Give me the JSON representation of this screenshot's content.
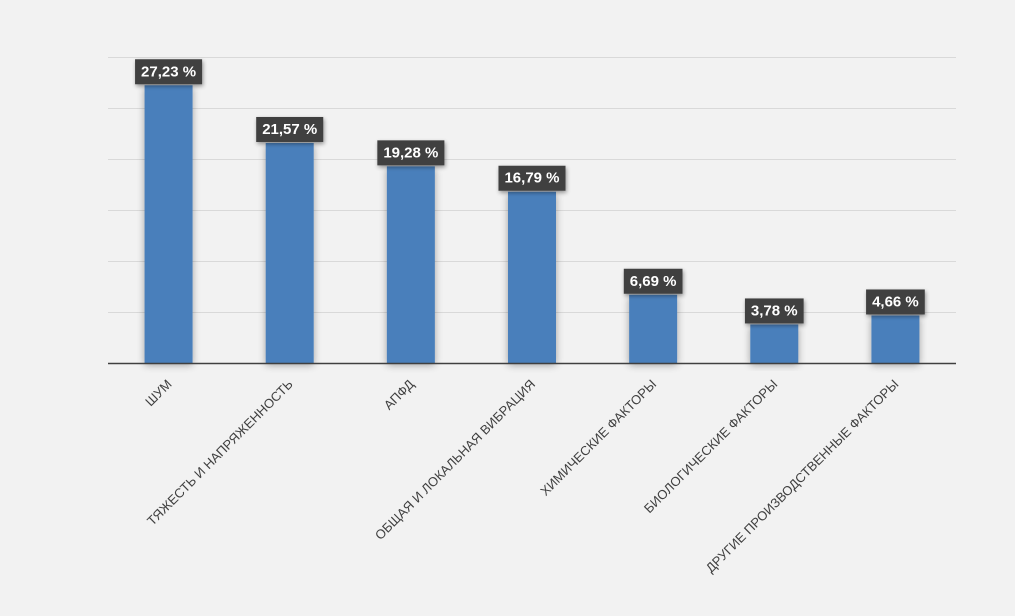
{
  "chart_data": {
    "type": "bar",
    "categories": [
      "ШУМ",
      "ТЯЖЕСТЬ И НАПРЯЖЕННОСТЬ",
      "АПФД",
      "ОБЩАЯ И ЛОКАЛЬНАЯ ВИБРАЦИЯ",
      "ХИМИЧЕСКИЕ ФАКТОРЫ",
      "БИОЛОГИЧЕСКИЕ ФАКТОРЫ",
      "ДРУГИЕ ПРОИЗВОДСТВЕННЫЕ ФАКТОРЫ"
    ],
    "values": [
      27.23,
      21.57,
      19.28,
      16.79,
      6.69,
      3.78,
      4.66
    ],
    "data_labels": [
      "27,23 %",
      "21,57 %",
      "19,28 %",
      "16,79 %",
      "6,69 %",
      "3,78 %",
      "4,66 %"
    ],
    "title": "",
    "xlabel": "",
    "ylabel": "",
    "ylim": [
      0,
      30
    ],
    "gridlines": [
      5,
      10,
      15,
      20,
      25,
      30
    ],
    "grid": true,
    "legend": "none",
    "y_tick_labels_visible": false,
    "colors": {
      "bar": "#4a7fbb",
      "label_background": "#404040",
      "label_text": "#ffffff",
      "gridline": "#d9d9d9",
      "axis": "#404040",
      "background": "#f2f2f2"
    }
  }
}
